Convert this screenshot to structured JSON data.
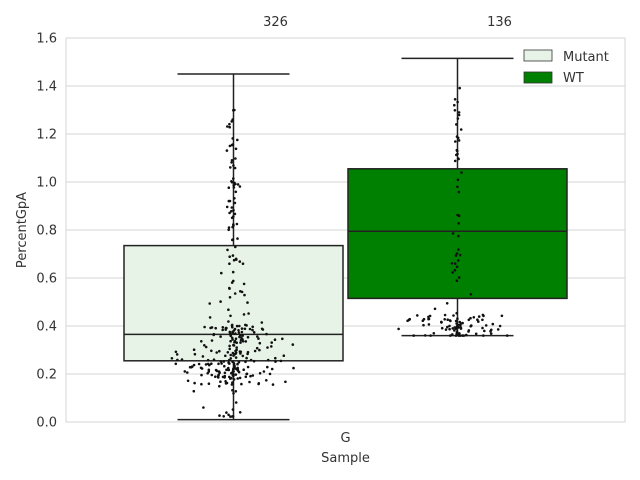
{
  "chart_data": {
    "type": "box",
    "xlabel": "Sample",
    "ylabel": "PercentGpA",
    "ylim": [
      0.0,
      1.6
    ],
    "yticks": [
      "0.0",
      "0.2",
      "0.4",
      "0.6",
      "0.8",
      "1.0",
      "1.2",
      "1.4",
      "1.6"
    ],
    "categories": [
      "G"
    ],
    "grid": true,
    "legend_position": "top-right",
    "series": [
      {
        "name": "Mutant",
        "color": "#e8f3e8",
        "count_label": "326",
        "whisker_low": 0.01,
        "q1": 0.255,
        "median": 0.365,
        "q3": 0.735,
        "whisker_high": 1.45
      },
      {
        "name": "WT",
        "color": "#008000",
        "count_label": "136",
        "whisker_low": 0.36,
        "q1": 0.515,
        "median": 0.795,
        "q3": 1.055,
        "whisker_high": 1.515
      }
    ]
  }
}
